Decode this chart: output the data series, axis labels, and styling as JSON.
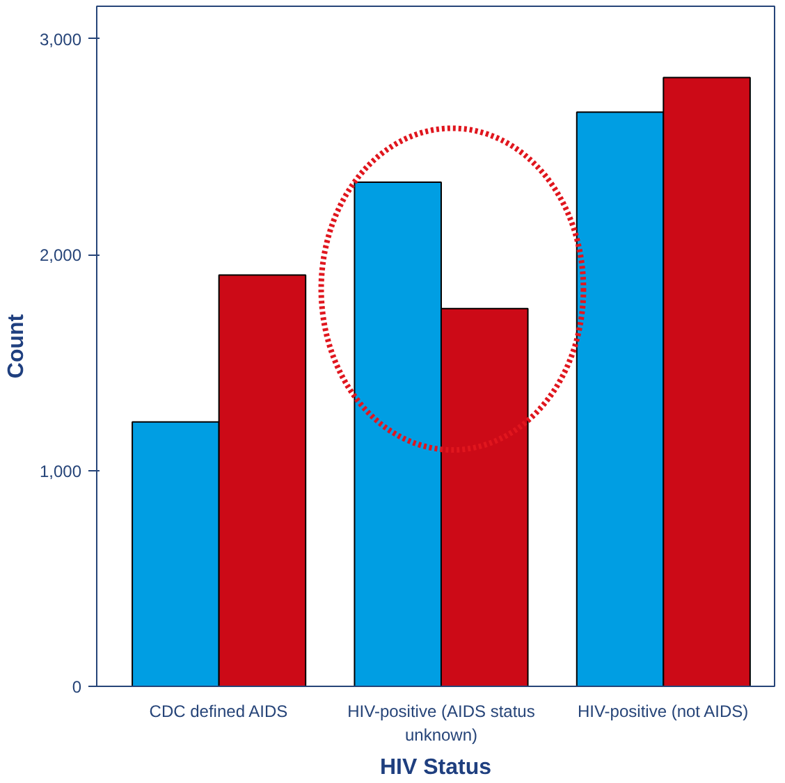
{
  "chart_data": {
    "type": "bar",
    "xlabel": "HIV Status",
    "ylabel": "Count",
    "categories": [
      "CDC defined AIDS",
      "HIV-positive (AIDS status\nunknown)",
      "HIV-positive (not AIDS)"
    ],
    "series": [
      {
        "color": "#009ee3",
        "values": [
          1225,
          2335,
          2660
        ]
      },
      {
        "color": "#cc0a17",
        "values": [
          1905,
          1750,
          2820
        ]
      }
    ],
    "ylim": [
      0,
      3150
    ],
    "yticks": [
      {
        "value": 0,
        "label": "0"
      },
      {
        "value": 1000,
        "label": "1,000"
      },
      {
        "value": 2000,
        "label": "2,000"
      },
      {
        "value": 3000,
        "label": "3,000"
      }
    ],
    "grid": false
  }
}
